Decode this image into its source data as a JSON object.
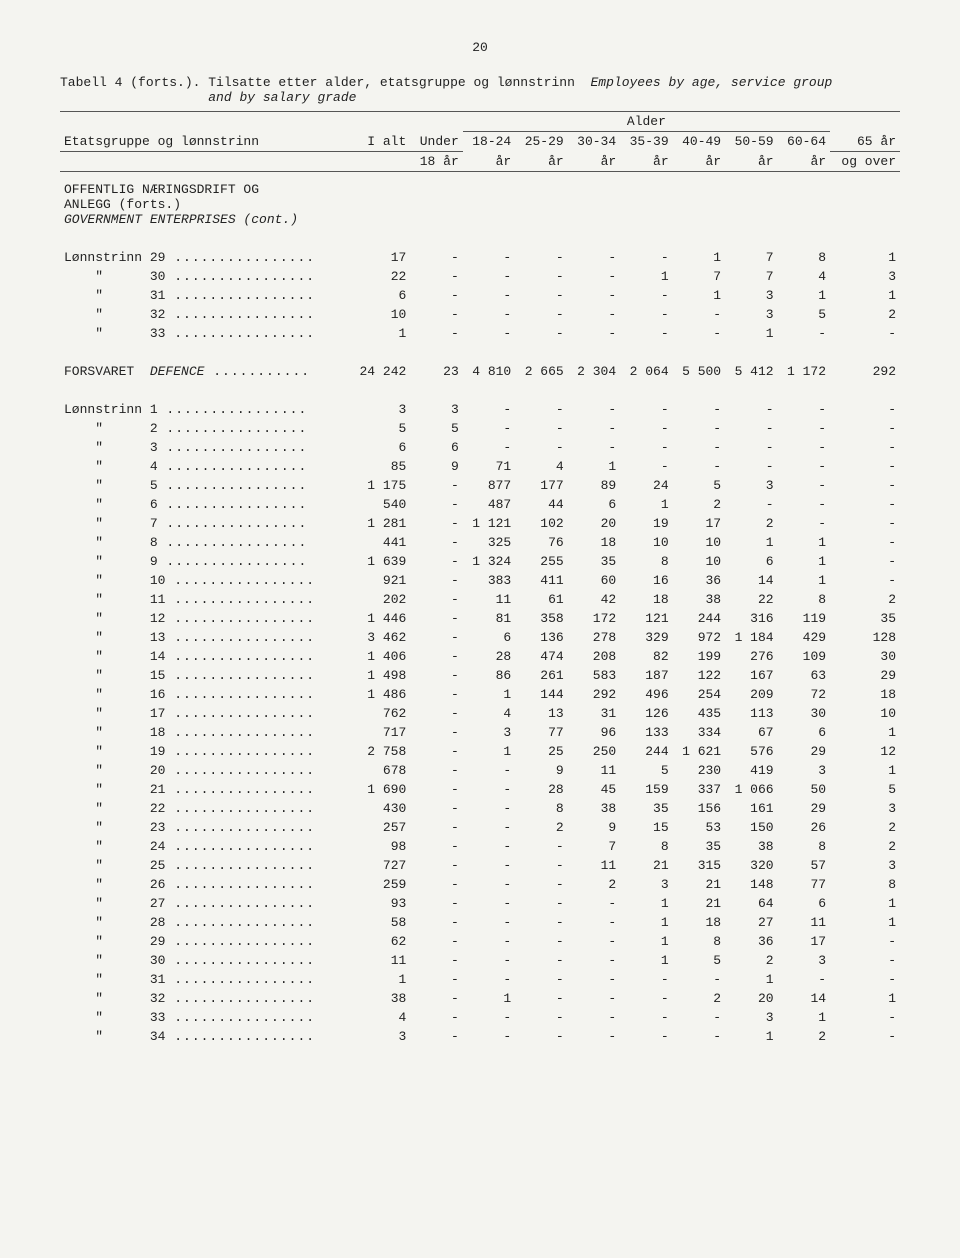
{
  "page_number": "20",
  "caption_prefix": "Tabell 4 (forts.). Tilsatte etter alder, etatsgruppe og lønnstrinn  ",
  "caption_italic": "Employees by age, service group",
  "caption_line2_indent": "                   ",
  "caption_line2_italic": "and by salary grade",
  "col_headers": {
    "group": "Etatsgruppe og lønnstrinn",
    "total": "I alt",
    "alder": "Alder",
    "cols": [
      [
        "Under",
        "18 år"
      ],
      [
        "18-24",
        "år"
      ],
      [
        "25-29",
        "år"
      ],
      [
        "30-34",
        "år"
      ],
      [
        "35-39",
        "år"
      ],
      [
        "40-49",
        "år"
      ],
      [
        "50-59",
        "år"
      ],
      [
        "60-64",
        "år"
      ],
      [
        "65 år",
        "og over"
      ]
    ]
  },
  "section1": {
    "line1": "OFFENTLIG NÆRINGSDRIFT OG",
    "line2": "ANLEGG (forts.)",
    "line3_italic": "GOVERNMENT ENTERPRISES (cont.)"
  },
  "section1_rows": [
    {
      "label": "Lønnstrinn 29",
      "v": [
        "17",
        "-",
        "-",
        "-",
        "-",
        "-",
        "1",
        "7",
        "8",
        "1"
      ]
    },
    {
      "label": "    \"      30",
      "v": [
        "22",
        "-",
        "-",
        "-",
        "-",
        "1",
        "7",
        "7",
        "4",
        "3"
      ]
    },
    {
      "label": "    \"      31",
      "v": [
        "6",
        "-",
        "-",
        "-",
        "-",
        "-",
        "1",
        "3",
        "1",
        "1"
      ]
    },
    {
      "label": "    \"      32",
      "v": [
        "10",
        "-",
        "-",
        "-",
        "-",
        "-",
        "-",
        "3",
        "5",
        "2"
      ]
    },
    {
      "label": "    \"      33",
      "v": [
        "1",
        "-",
        "-",
        "-",
        "-",
        "-",
        "-",
        "1",
        "-",
        "-"
      ]
    }
  ],
  "section2_header": {
    "label": "FORSVARET  DEFENCE",
    "v": [
      "24 242",
      "23",
      "4 810",
      "2 665",
      "2 304",
      "2 064",
      "5 500",
      "5 412",
      "1 172",
      "292"
    ]
  },
  "section2_rows": [
    {
      "label": "Lønnstrinn 1",
      "v": [
        "3",
        "3",
        "-",
        "-",
        "-",
        "-",
        "-",
        "-",
        "-",
        "-"
      ]
    },
    {
      "label": "    \"      2",
      "v": [
        "5",
        "5",
        "-",
        "-",
        "-",
        "-",
        "-",
        "-",
        "-",
        "-"
      ]
    },
    {
      "label": "    \"      3",
      "v": [
        "6",
        "6",
        "-",
        "-",
        "-",
        "-",
        "-",
        "-",
        "-",
        "-"
      ]
    },
    {
      "label": "    \"      4",
      "v": [
        "85",
        "9",
        "71",
        "4",
        "1",
        "-",
        "-",
        "-",
        "-",
        "-"
      ]
    },
    {
      "label": "    \"      5",
      "v": [
        "1 175",
        "-",
        "877",
        "177",
        "89",
        "24",
        "5",
        "3",
        "-",
        "-"
      ]
    },
    {
      "label": "    \"      6",
      "v": [
        "540",
        "-",
        "487",
        "44",
        "6",
        "1",
        "2",
        "-",
        "-",
        "-"
      ]
    },
    {
      "label": "    \"      7",
      "v": [
        "1 281",
        "-",
        "1 121",
        "102",
        "20",
        "19",
        "17",
        "2",
        "-",
        "-"
      ]
    },
    {
      "label": "    \"      8",
      "v": [
        "441",
        "-",
        "325",
        "76",
        "18",
        "10",
        "10",
        "1",
        "1",
        "-"
      ]
    },
    {
      "label": "    \"      9",
      "v": [
        "1 639",
        "-",
        "1 324",
        "255",
        "35",
        "8",
        "10",
        "6",
        "1",
        "-"
      ]
    },
    {
      "label": "    \"      10",
      "v": [
        "921",
        "-",
        "383",
        "411",
        "60",
        "16",
        "36",
        "14",
        "1",
        "-"
      ]
    },
    {
      "label": "    \"      11",
      "v": [
        "202",
        "-",
        "11",
        "61",
        "42",
        "18",
        "38",
        "22",
        "8",
        "2"
      ]
    },
    {
      "label": "    \"      12",
      "v": [
        "1 446",
        "-",
        "81",
        "358",
        "172",
        "121",
        "244",
        "316",
        "119",
        "35"
      ]
    },
    {
      "label": "    \"      13",
      "v": [
        "3 462",
        "-",
        "6",
        "136",
        "278",
        "329",
        "972",
        "1 184",
        "429",
        "128"
      ]
    },
    {
      "label": "    \"      14",
      "v": [
        "1 406",
        "-",
        "28",
        "474",
        "208",
        "82",
        "199",
        "276",
        "109",
        "30"
      ]
    },
    {
      "label": "    \"      15",
      "v": [
        "1 498",
        "-",
        "86",
        "261",
        "583",
        "187",
        "122",
        "167",
        "63",
        "29"
      ]
    },
    {
      "label": "    \"      16",
      "v": [
        "1 486",
        "-",
        "1",
        "144",
        "292",
        "496",
        "254",
        "209",
        "72",
        "18"
      ]
    },
    {
      "label": "    \"      17",
      "v": [
        "762",
        "-",
        "4",
        "13",
        "31",
        "126",
        "435",
        "113",
        "30",
        "10"
      ]
    },
    {
      "label": "    \"      18",
      "v": [
        "717",
        "-",
        "3",
        "77",
        "96",
        "133",
        "334",
        "67",
        "6",
        "1"
      ]
    },
    {
      "label": "    \"      19",
      "v": [
        "2 758",
        "-",
        "1",
        "25",
        "250",
        "244",
        "1 621",
        "576",
        "29",
        "12"
      ]
    },
    {
      "label": "    \"      20",
      "v": [
        "678",
        "-",
        "-",
        "9",
        "11",
        "5",
        "230",
        "419",
        "3",
        "1"
      ]
    },
    {
      "label": "    \"      21",
      "v": [
        "1 690",
        "-",
        "-",
        "28",
        "45",
        "159",
        "337",
        "1 066",
        "50",
        "5"
      ]
    },
    {
      "label": "    \"      22",
      "v": [
        "430",
        "-",
        "-",
        "8",
        "38",
        "35",
        "156",
        "161",
        "29",
        "3"
      ]
    },
    {
      "label": "    \"      23",
      "v": [
        "257",
        "-",
        "-",
        "2",
        "9",
        "15",
        "53",
        "150",
        "26",
        "2"
      ]
    },
    {
      "label": "    \"      24",
      "v": [
        "98",
        "-",
        "-",
        "-",
        "7",
        "8",
        "35",
        "38",
        "8",
        "2"
      ]
    },
    {
      "label": "    \"      25",
      "v": [
        "727",
        "-",
        "-",
        "-",
        "11",
        "21",
        "315",
        "320",
        "57",
        "3"
      ]
    },
    {
      "label": "    \"      26",
      "v": [
        "259",
        "-",
        "-",
        "-",
        "2",
        "3",
        "21",
        "148",
        "77",
        "8"
      ]
    },
    {
      "label": "    \"      27",
      "v": [
        "93",
        "-",
        "-",
        "-",
        "-",
        "1",
        "21",
        "64",
        "6",
        "1"
      ]
    },
    {
      "label": "    \"      28",
      "v": [
        "58",
        "-",
        "-",
        "-",
        "-",
        "1",
        "18",
        "27",
        "11",
        "1"
      ]
    },
    {
      "label": "    \"      29",
      "v": [
        "62",
        "-",
        "-",
        "-",
        "-",
        "1",
        "8",
        "36",
        "17",
        "-"
      ]
    },
    {
      "label": "    \"      30",
      "v": [
        "11",
        "-",
        "-",
        "-",
        "-",
        "1",
        "5",
        "2",
        "3",
        "-"
      ]
    },
    {
      "label": "    \"      31",
      "v": [
        "1",
        "-",
        "-",
        "-",
        "-",
        "-",
        "-",
        "1",
        "-",
        "-"
      ]
    },
    {
      "label": "    \"      32",
      "v": [
        "38",
        "-",
        "1",
        "-",
        "-",
        "-",
        "2",
        "20",
        "14",
        "1"
      ]
    },
    {
      "label": "    \"      33",
      "v": [
        "4",
        "-",
        "-",
        "-",
        "-",
        "-",
        "-",
        "3",
        "1",
        "-"
      ]
    },
    {
      "label": "    \"      34",
      "v": [
        "3",
        "-",
        "-",
        "-",
        "-",
        "-",
        "-",
        "1",
        "2",
        "-"
      ]
    }
  ],
  "dots": " ................",
  "dots_long": " ..........."
}
